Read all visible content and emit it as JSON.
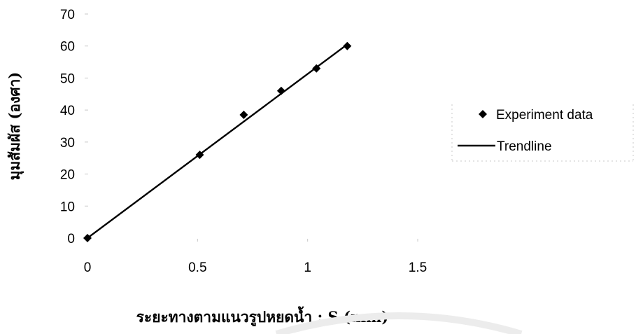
{
  "chart_data": {
    "type": "scatter",
    "title": "",
    "xlabel": "ระยะทางตามแนวรูปหยดน้ำ ; S (mm)",
    "ylabel": "มุมสัมผัส (องศา)",
    "xlim": [
      0,
      1.5
    ],
    "ylim": [
      0,
      70
    ],
    "x_ticks": [
      "0",
      "0.5",
      "1",
      "1.5"
    ],
    "y_ticks": [
      "0",
      "10",
      "20",
      "30",
      "40",
      "50",
      "60",
      "70"
    ],
    "grid": false,
    "legend_position": "right",
    "series": [
      {
        "name": "Experiment data",
        "marker": "diamond",
        "color": "#000000",
        "x": [
          0,
          0.51,
          0.71,
          0.88,
          1.04,
          1.18
        ],
        "y": [
          0,
          26,
          38.5,
          46,
          53,
          60
        ]
      },
      {
        "name": "Trendline",
        "line": true,
        "color": "#000000",
        "x": [
          0,
          1.18
        ],
        "y": [
          0,
          60.5
        ]
      }
    ]
  }
}
